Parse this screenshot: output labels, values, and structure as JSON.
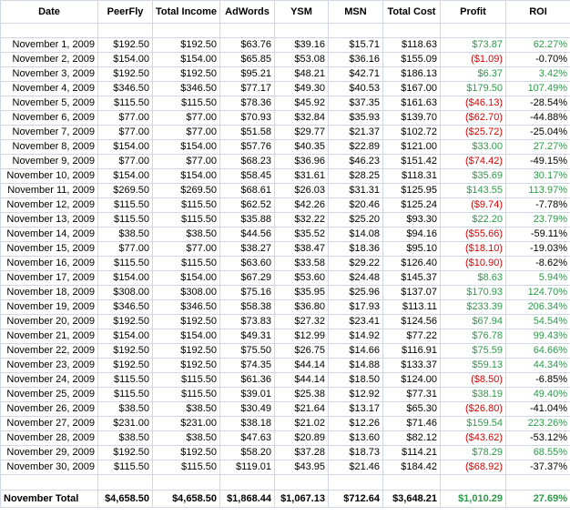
{
  "headers": [
    "Date",
    "PeerFly",
    "Total Income",
    "AdWords",
    "YSM",
    "MSN",
    "Total Cost",
    "Profit",
    "ROI"
  ],
  "rows": [
    {
      "date": "November 1, 2009",
      "peerfly": "$192.50",
      "income": "$192.50",
      "adwords": "$63.76",
      "ysm": "$39.16",
      "msn": "$15.71",
      "cost": "$118.63",
      "profit": "$73.87",
      "roi": "62.27%",
      "profit_status": "pos",
      "roi_status": "pos"
    },
    {
      "date": "November 2, 2009",
      "peerfly": "$154.00",
      "income": "$154.00",
      "adwords": "$65.85",
      "ysm": "$53.08",
      "msn": "$36.16",
      "cost": "$155.09",
      "profit": "($1.09)",
      "roi": "-0.70%",
      "profit_status": "neg",
      "roi_status": "plain"
    },
    {
      "date": "November 3, 2009",
      "peerfly": "$192.50",
      "income": "$192.50",
      "adwords": "$95.21",
      "ysm": "$48.21",
      "msn": "$42.71",
      "cost": "$186.13",
      "profit": "$6.37",
      "roi": "3.42%",
      "profit_status": "pos",
      "roi_status": "pos"
    },
    {
      "date": "November 4, 2009",
      "peerfly": "$346.50",
      "income": "$346.50",
      "adwords": "$77.17",
      "ysm": "$49.30",
      "msn": "$40.53",
      "cost": "$167.00",
      "profit": "$179.50",
      "roi": "107.49%",
      "profit_status": "pos",
      "roi_status": "pos"
    },
    {
      "date": "November 5, 2009",
      "peerfly": "$115.50",
      "income": "$115.50",
      "adwords": "$78.36",
      "ysm": "$45.92",
      "msn": "$37.35",
      "cost": "$161.63",
      "profit": "($46.13)",
      "roi": "-28.54%",
      "profit_status": "neg",
      "roi_status": "plain"
    },
    {
      "date": "November 6, 2009",
      "peerfly": "$77.00",
      "income": "$77.00",
      "adwords": "$70.93",
      "ysm": "$32.84",
      "msn": "$35.93",
      "cost": "$139.70",
      "profit": "($62.70)",
      "roi": "-44.88%",
      "profit_status": "neg",
      "roi_status": "plain"
    },
    {
      "date": "November 7, 2009",
      "peerfly": "$77.00",
      "income": "$77.00",
      "adwords": "$51.58",
      "ysm": "$29.77",
      "msn": "$21.37",
      "cost": "$102.72",
      "profit": "($25.72)",
      "roi": "-25.04%",
      "profit_status": "neg",
      "roi_status": "plain"
    },
    {
      "date": "November 8, 2009",
      "peerfly": "$154.00",
      "income": "$154.00",
      "adwords": "$57.76",
      "ysm": "$40.35",
      "msn": "$22.89",
      "cost": "$121.00",
      "profit": "$33.00",
      "roi": "27.27%",
      "profit_status": "pos",
      "roi_status": "pos"
    },
    {
      "date": "November 9, 2009",
      "peerfly": "$77.00",
      "income": "$77.00",
      "adwords": "$68.23",
      "ysm": "$36.96",
      "msn": "$46.23",
      "cost": "$151.42",
      "profit": "($74.42)",
      "roi": "-49.15%",
      "profit_status": "neg",
      "roi_status": "plain"
    },
    {
      "date": "November 10, 2009",
      "peerfly": "$154.00",
      "income": "$154.00",
      "adwords": "$58.45",
      "ysm": "$31.61",
      "msn": "$28.25",
      "cost": "$118.31",
      "profit": "$35.69",
      "roi": "30.17%",
      "profit_status": "pos",
      "roi_status": "pos"
    },
    {
      "date": "November 11, 2009",
      "peerfly": "$269.50",
      "income": "$269.50",
      "adwords": "$68.61",
      "ysm": "$26.03",
      "msn": "$31.31",
      "cost": "$125.95",
      "profit": "$143.55",
      "roi": "113.97%",
      "profit_status": "pos",
      "roi_status": "pos"
    },
    {
      "date": "November 12, 2009",
      "peerfly": "$115.50",
      "income": "$115.50",
      "adwords": "$62.52",
      "ysm": "$42.26",
      "msn": "$20.46",
      "cost": "$125.24",
      "profit": "($9.74)",
      "roi": "-7.78%",
      "profit_status": "neg",
      "roi_status": "plain"
    },
    {
      "date": "November 13, 2009",
      "peerfly": "$115.50",
      "income": "$115.50",
      "adwords": "$35.88",
      "ysm": "$32.22",
      "msn": "$25.20",
      "cost": "$93.30",
      "profit": "$22.20",
      "roi": "23.79%",
      "profit_status": "pos",
      "roi_status": "pos"
    },
    {
      "date": "November 14, 2009",
      "peerfly": "$38.50",
      "income": "$38.50",
      "adwords": "$44.56",
      "ysm": "$35.52",
      "msn": "$14.08",
      "cost": "$94.16",
      "profit": "($55.66)",
      "roi": "-59.11%",
      "profit_status": "neg",
      "roi_status": "plain"
    },
    {
      "date": "November 15, 2009",
      "peerfly": "$77.00",
      "income": "$77.00",
      "adwords": "$38.27",
      "ysm": "$38.47",
      "msn": "$18.36",
      "cost": "$95.10",
      "profit": "($18.10)",
      "roi": "-19.03%",
      "profit_status": "neg",
      "roi_status": "plain"
    },
    {
      "date": "November 16, 2009",
      "peerfly": "$115.50",
      "income": "$115.50",
      "adwords": "$63.60",
      "ysm": "$33.58",
      "msn": "$29.22",
      "cost": "$126.40",
      "profit": "($10.90)",
      "roi": "-8.62%",
      "profit_status": "neg",
      "roi_status": "plain"
    },
    {
      "date": "November 17, 2009",
      "peerfly": "$154.00",
      "income": "$154.00",
      "adwords": "$67.29",
      "ysm": "$53.60",
      "msn": "$24.48",
      "cost": "$145.37",
      "profit": "$8.63",
      "roi": "5.94%",
      "profit_status": "pos",
      "roi_status": "pos"
    },
    {
      "date": "November 18, 2009",
      "peerfly": "$308.00",
      "income": "$308.00",
      "adwords": "$75.16",
      "ysm": "$35.95",
      "msn": "$25.96",
      "cost": "$137.07",
      "profit": "$170.93",
      "roi": "124.70%",
      "profit_status": "pos",
      "roi_status": "pos"
    },
    {
      "date": "November 19, 2009",
      "peerfly": "$346.50",
      "income": "$346.50",
      "adwords": "$58.38",
      "ysm": "$36.80",
      "msn": "$17.93",
      "cost": "$113.11",
      "profit": "$233.39",
      "roi": "206.34%",
      "profit_status": "pos",
      "roi_status": "pos"
    },
    {
      "date": "November 20, 2009",
      "peerfly": "$192.50",
      "income": "$192.50",
      "adwords": "$73.83",
      "ysm": "$27.32",
      "msn": "$23.41",
      "cost": "$124.56",
      "profit": "$67.94",
      "roi": "54.54%",
      "profit_status": "pos",
      "roi_status": "pos"
    },
    {
      "date": "November 21, 2009",
      "peerfly": "$154.00",
      "income": "$154.00",
      "adwords": "$49.31",
      "ysm": "$12.99",
      "msn": "$14.92",
      "cost": "$77.22",
      "profit": "$76.78",
      "roi": "99.43%",
      "profit_status": "pos",
      "roi_status": "pos"
    },
    {
      "date": "November 22, 2009",
      "peerfly": "$192.50",
      "income": "$192.50",
      "adwords": "$75.50",
      "ysm": "$26.75",
      "msn": "$14.66",
      "cost": "$116.91",
      "profit": "$75.59",
      "roi": "64.66%",
      "profit_status": "pos",
      "roi_status": "pos"
    },
    {
      "date": "November 23, 2009",
      "peerfly": "$192.50",
      "income": "$192.50",
      "adwords": "$74.35",
      "ysm": "$44.14",
      "msn": "$14.88",
      "cost": "$133.37",
      "profit": "$59.13",
      "roi": "44.34%",
      "profit_status": "pos",
      "roi_status": "pos"
    },
    {
      "date": "November 24, 2009",
      "peerfly": "$115.50",
      "income": "$115.50",
      "adwords": "$61.36",
      "ysm": "$44.14",
      "msn": "$18.50",
      "cost": "$124.00",
      "profit": "($8.50)",
      "roi": "-6.85%",
      "profit_status": "neg",
      "roi_status": "plain"
    },
    {
      "date": "November 25, 2009",
      "peerfly": "$115.50",
      "income": "$115.50",
      "adwords": "$39.01",
      "ysm": "$25.38",
      "msn": "$12.92",
      "cost": "$77.31",
      "profit": "$38.19",
      "roi": "49.40%",
      "profit_status": "pos",
      "roi_status": "pos"
    },
    {
      "date": "November 26, 2009",
      "peerfly": "$38.50",
      "income": "$38.50",
      "adwords": "$30.49",
      "ysm": "$21.64",
      "msn": "$13.17",
      "cost": "$65.30",
      "profit": "($26.80)",
      "roi": "-41.04%",
      "profit_status": "neg",
      "roi_status": "plain"
    },
    {
      "date": "November 27, 2009",
      "peerfly": "$231.00",
      "income": "$231.00",
      "adwords": "$38.18",
      "ysm": "$21.02",
      "msn": "$12.26",
      "cost": "$71.46",
      "profit": "$159.54",
      "roi": "223.26%",
      "profit_status": "pos",
      "roi_status": "pos"
    },
    {
      "date": "November 28, 2009",
      "peerfly": "$38.50",
      "income": "$38.50",
      "adwords": "$47.63",
      "ysm": "$20.89",
      "msn": "$13.60",
      "cost": "$82.12",
      "profit": "($43.62)",
      "roi": "-53.12%",
      "profit_status": "neg",
      "roi_status": "plain"
    },
    {
      "date": "November 29, 2009",
      "peerfly": "$192.50",
      "income": "$192.50",
      "adwords": "$58.20",
      "ysm": "$37.28",
      "msn": "$18.73",
      "cost": "$114.21",
      "profit": "$78.29",
      "roi": "68.55%",
      "profit_status": "pos",
      "roi_status": "pos"
    },
    {
      "date": "November 30, 2009",
      "peerfly": "$115.50",
      "income": "$115.50",
      "adwords": "$119.01",
      "ysm": "$43.95",
      "msn": "$21.46",
      "cost": "$184.42",
      "profit": "($68.92)",
      "roi": "-37.37%",
      "profit_status": "neg",
      "roi_status": "plain"
    }
  ],
  "total": {
    "label": "November Total",
    "peerfly": "$4,658.50",
    "income": "$4,658.50",
    "adwords": "$1,868.44",
    "ysm": "$1,067.13",
    "msn": "$712.64",
    "cost": "$3,648.21",
    "profit": "$1,010.29",
    "roi": "27.69%",
    "profit_status": "pos",
    "roi_status": "pos"
  },
  "colors": {
    "positive": "#2e9a4a",
    "negative": "#e00000",
    "gridline": "#d0d7e5"
  }
}
